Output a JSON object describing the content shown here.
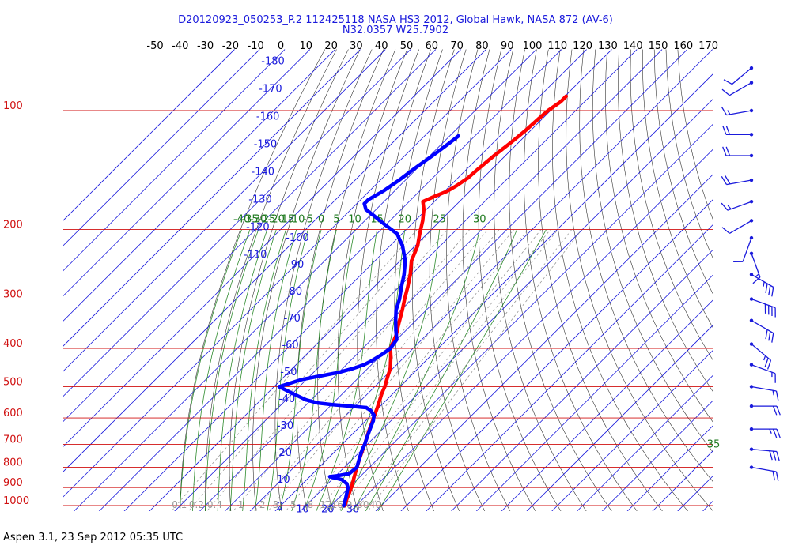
{
  "header": {
    "title_line1": "D20120923_050253_P.2 112425118 NASA HS3 2012, Global Hawk, NASA 872 (AV-6)",
    "title_line2": "N32.0357 W25.7902"
  },
  "footer": {
    "text": "Aspen 3.1, 23 Sep 2012  05:35 UTC"
  },
  "chart_data": {
    "type": "line",
    "subtype": "skew-T log-P thermodynamic diagram",
    "pressure_axis": {
      "scale": "log",
      "range_hPa": [
        1050,
        70
      ],
      "ticks": [
        {
          "label": "100",
          "value": 100
        },
        {
          "label": "200",
          "value": 200
        },
        {
          "label": "300",
          "value": 300
        },
        {
          "label": "400",
          "value": 400
        },
        {
          "label": "500",
          "value": 500
        },
        {
          "label": "600",
          "value": 600
        },
        {
          "label": "700",
          "value": 700
        },
        {
          "label": "800",
          "value": 800
        },
        {
          "label": "900",
          "value": 900
        },
        {
          "label": "1000",
          "value": 1000
        }
      ]
    },
    "temperature_axis": {
      "labels": [
        "-50",
        "-40",
        "-30",
        "-20",
        "-10",
        "0",
        "10",
        "20",
        "30",
        "40",
        "50",
        "60",
        "70",
        "80",
        "90",
        "100",
        "110",
        "120",
        "130",
        "140",
        "150",
        "160",
        "170"
      ],
      "values": [
        -50,
        -40,
        -30,
        -20,
        -10,
        0,
        10,
        20,
        30,
        40,
        50,
        60,
        70,
        80,
        90,
        100,
        110,
        120,
        130,
        140,
        150,
        160,
        170
      ]
    },
    "isotherm_labels": [
      {
        "label": "-180",
        "value": -180
      },
      {
        "label": "-170",
        "value": -170
      },
      {
        "label": "-160",
        "value": -160
      },
      {
        "label": "-150",
        "value": -150
      },
      {
        "label": "-140",
        "value": -140
      },
      {
        "label": "-130",
        "value": -130
      },
      {
        "label": "-120",
        "value": -120
      },
      {
        "label": "-110",
        "value": -110
      },
      {
        "label": "-100",
        "value": -100
      },
      {
        "label": "-90",
        "value": -90
      },
      {
        "label": "-80",
        "value": -80
      },
      {
        "label": "-70",
        "value": -70
      },
      {
        "label": "-60",
        "value": -60
      },
      {
        "label": "-50",
        "value": -50
      },
      {
        "label": "-40",
        "value": -40
      },
      {
        "label": "-30",
        "value": -30
      },
      {
        "label": "-20",
        "value": -20
      },
      {
        "label": "-10",
        "value": -10
      },
      {
        "label": "0",
        "value": 0
      },
      {
        "label": "10",
        "value": 10
      },
      {
        "label": "20",
        "value": 20
      },
      {
        "label": "30",
        "value": 30
      }
    ],
    "moist_adiabat_labels": [
      "-40",
      "-35",
      "-30",
      "-25",
      "-20",
      "-15",
      "-10",
      "-5",
      "0",
      "5",
      "10",
      "15",
      "20",
      "25",
      "30",
      "35"
    ],
    "mixing_ratio_labels": [
      "0.1",
      "0.2",
      "0.4",
      "1",
      "2",
      "3",
      "5",
      "8",
      "12",
      "16",
      "20",
      "30",
      "40"
    ],
    "series": [
      {
        "color": "#ff0000",
        "kind": "temperature",
        "points": [
          {
            "p": 1000,
            "t": 25.5
          },
          {
            "p": 960,
            "t": 23.5
          },
          {
            "p": 925,
            "t": 22.0
          },
          {
            "p": 880,
            "t": 19.8
          },
          {
            "p": 850,
            "t": 18.0
          },
          {
            "p": 800,
            "t": 15.0
          },
          {
            "p": 750,
            "t": 12.0
          },
          {
            "p": 700,
            "t": 9.0
          },
          {
            "p": 650,
            "t": 5.5
          },
          {
            "p": 600,
            "t": 2.0
          },
          {
            "p": 560,
            "t": -1.0
          },
          {
            "p": 520,
            "t": -4.5
          },
          {
            "p": 500,
            "t": -6.0
          },
          {
            "p": 470,
            "t": -9.0
          },
          {
            "p": 450,
            "t": -11.0
          },
          {
            "p": 420,
            "t": -15.5
          },
          {
            "p": 400,
            "t": -19.0
          },
          {
            "p": 390,
            "t": -20.0
          },
          {
            "p": 370,
            "t": -22.0
          },
          {
            "p": 350,
            "t": -25.0
          },
          {
            "p": 320,
            "t": -29.5
          },
          {
            "p": 300,
            "t": -33.0
          },
          {
            "p": 280,
            "t": -36.5
          },
          {
            "p": 260,
            "t": -40.5
          },
          {
            "p": 240,
            "t": -45.5
          },
          {
            "p": 220,
            "t": -49.0
          },
          {
            "p": 205,
            "t": -53.0
          },
          {
            "p": 190,
            "t": -57.0
          },
          {
            "p": 178,
            "t": -61.0
          },
          {
            "p": 170,
            "t": -64.5
          },
          {
            "p": 165,
            "t": -62.0
          },
          {
            "p": 160,
            "t": -59.0
          },
          {
            "p": 155,
            "t": -57.5
          },
          {
            "p": 148,
            "t": -56.0
          },
          {
            "p": 140,
            "t": -55.5
          },
          {
            "p": 130,
            "t": -54.5
          },
          {
            "p": 120,
            "t": -53.0
          },
          {
            "p": 112,
            "t": -52.0
          },
          {
            "p": 105,
            "t": -51.5
          },
          {
            "p": 100,
            "t": -51.0
          },
          {
            "p": 95,
            "t": -49.5
          },
          {
            "p": 92,
            "t": -49.5
          }
        ]
      },
      {
        "color": "#0000ff",
        "kind": "dewpoint",
        "points": [
          {
            "p": 1000,
            "t": 25.0
          },
          {
            "p": 960,
            "t": 23.0
          },
          {
            "p": 925,
            "t": 21.0
          },
          {
            "p": 900,
            "t": 19.5
          },
          {
            "p": 880,
            "t": 17.5
          },
          {
            "p": 860,
            "t": 14.0
          },
          {
            "p": 850,
            "t": 10.0
          },
          {
            "p": 845,
            "t": 8.0
          },
          {
            "p": 840,
            "t": 11.0
          },
          {
            "p": 830,
            "t": 14.5
          },
          {
            "p": 800,
            "t": 15.0
          },
          {
            "p": 760,
            "t": 12.5
          },
          {
            "p": 720,
            "t": 10.0
          },
          {
            "p": 700,
            "t": 9.0
          },
          {
            "p": 670,
            "t": 7.0
          },
          {
            "p": 640,
            "t": 5.0
          },
          {
            "p": 610,
            "t": 3.0
          },
          {
            "p": 590,
            "t": 1.0
          },
          {
            "p": 575,
            "t": -2.0
          },
          {
            "p": 565,
            "t": -5.0
          },
          {
            "p": 560,
            "t": -12.0
          },
          {
            "p": 555,
            "t": -20.0
          },
          {
            "p": 550,
            "t": -26.0
          },
          {
            "p": 540,
            "t": -32.0
          },
          {
            "p": 520,
            "t": -40.0
          },
          {
            "p": 500,
            "t": -48.0
          },
          {
            "p": 480,
            "t": -42.0
          },
          {
            "p": 470,
            "t": -36.0
          },
          {
            "p": 460,
            "t": -30.0
          },
          {
            "p": 450,
            "t": -26.0
          },
          {
            "p": 440,
            "t": -23.0
          },
          {
            "p": 430,
            "t": -21.5
          },
          {
            "p": 415,
            "t": -20.0
          },
          {
            "p": 400,
            "t": -19.0
          },
          {
            "p": 380,
            "t": -20.0
          },
          {
            "p": 360,
            "t": -24.0
          },
          {
            "p": 340,
            "t": -28.0
          },
          {
            "p": 320,
            "t": -32.0
          },
          {
            "p": 300,
            "t": -35.0
          },
          {
            "p": 280,
            "t": -39.0
          },
          {
            "p": 260,
            "t": -43.0
          },
          {
            "p": 240,
            "t": -48.0
          },
          {
            "p": 220,
            "t": -55.0
          },
          {
            "p": 205,
            "t": -62.0
          },
          {
            "p": 195,
            "t": -70.0
          },
          {
            "p": 185,
            "t": -78.0
          },
          {
            "p": 178,
            "t": -84.0
          },
          {
            "p": 172,
            "t": -87.0
          },
          {
            "p": 168,
            "t": -87.0
          },
          {
            "p": 160,
            "t": -84.5
          },
          {
            "p": 150,
            "t": -82.5
          },
          {
            "p": 140,
            "t": -81.0
          },
          {
            "p": 130,
            "t": -79.0
          },
          {
            "p": 122,
            "t": -77.5
          },
          {
            "p": 116,
            "t": -76.5
          }
        ]
      }
    ],
    "wind_barbs": {
      "color": "#1a1adc",
      "pressures": [
        78,
        85,
        100,
        115,
        130,
        150,
        170,
        190,
        210,
        230,
        260,
        300,
        340,
        390,
        440,
        500,
        560,
        640,
        720,
        800
      ],
      "speeds_kt": [
        10,
        10,
        15,
        20,
        20,
        20,
        15,
        10,
        10,
        15,
        35,
        40,
        30,
        25,
        15,
        15,
        20,
        25,
        30,
        20
      ],
      "directions_deg": [
        230,
        240,
        260,
        270,
        270,
        260,
        250,
        240,
        200,
        160,
        120,
        110,
        120,
        130,
        110,
        100,
        90,
        90,
        95,
        100
      ]
    }
  }
}
